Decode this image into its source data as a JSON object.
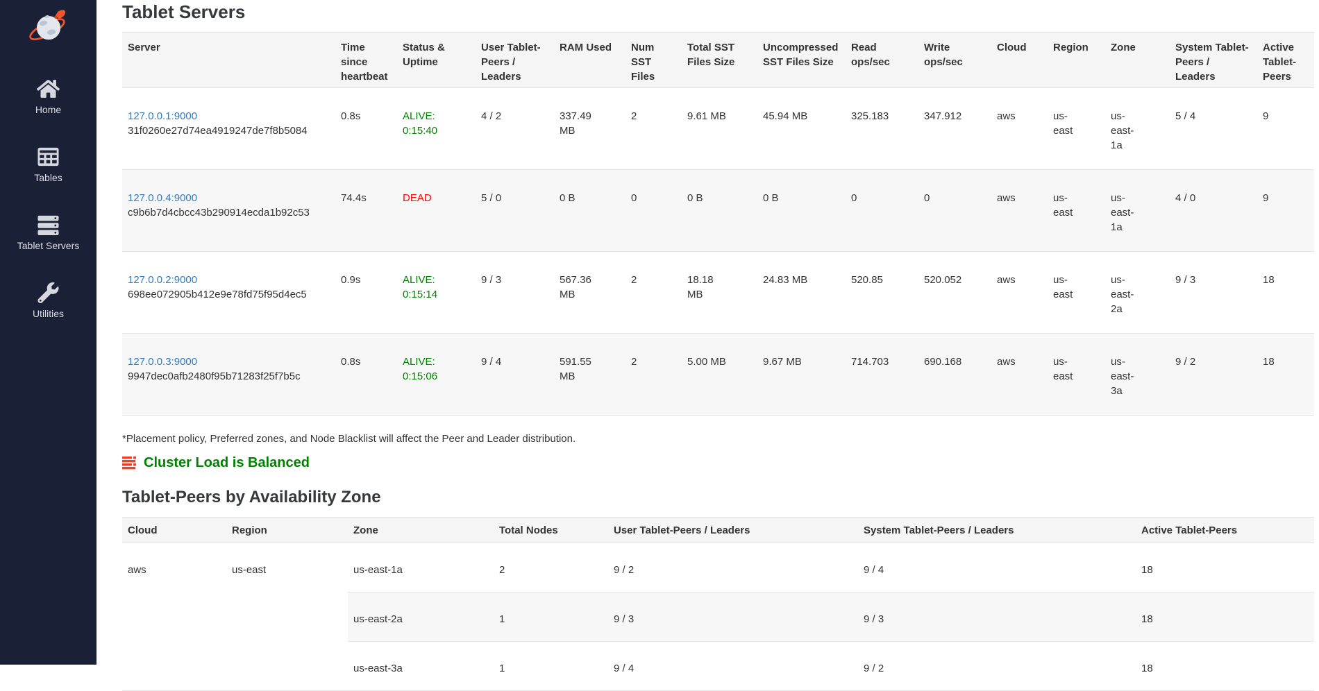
{
  "colors": {
    "sidebar_bg": "#1a2036",
    "sidebar_text": "#dcdee6",
    "link_blue": "#337ab7",
    "alive_green": "#008000",
    "dead_red": "#ff0000",
    "balanced_green": "#008000",
    "load_icon_red": "#e8432c",
    "header_bg": "#f5f5f5",
    "stripe_bg": "#f7f7f7"
  },
  "sidebar": {
    "logo_icon": "yugabyte-logo",
    "items": [
      {
        "id": "home",
        "label": "Home",
        "icon": "home-icon"
      },
      {
        "id": "tables",
        "label": "Tables",
        "icon": "tables-icon"
      },
      {
        "id": "tablet-servers",
        "label": "Tablet Servers",
        "icon": "tablet-servers-icon"
      },
      {
        "id": "utilities",
        "label": "Utilities",
        "icon": "utilities-icon"
      }
    ]
  },
  "page": {
    "title": "Tablet Servers",
    "footnote": "*Placement policy, Preferred zones, and Node Blacklist will affect the Peer and Leader distribution.",
    "cluster_status": "Cluster Load is Balanced",
    "az_title": "Tablet-Peers by Availability Zone"
  },
  "servers_table": {
    "columns": [
      "Server",
      "Time since heartbeat",
      "Status & Uptime",
      "User Tablet-Peers / Leaders",
      "RAM Used",
      "Num SST Files",
      "Total SST Files Size",
      "Uncompressed SST Files Size",
      "Read ops/sec",
      "Write ops/sec",
      "Cloud",
      "Region",
      "Zone",
      "System Tablet-Peers / Leaders",
      "Active Tablet-Peers"
    ],
    "rows": [
      {
        "server": "127.0.0.1:9000",
        "uuid": "31f0260e27d74ea4919247de7f8b5084",
        "heartbeat": "0.8s",
        "status": "ALIVE:",
        "uptime": "0:15:40",
        "alive": true,
        "user_peers": "4 / 2",
        "ram": "337.49 MB",
        "num_sst": "2",
        "total_sst": "9.61 MB",
        "uncompressed_sst": "45.94 MB",
        "read_ops": "325.183",
        "write_ops": "347.912",
        "cloud": "aws",
        "region": "us-east",
        "zone": "us-east-1a",
        "system_peers": "5 / 4",
        "active_peers": "9"
      },
      {
        "server": "127.0.0.4:9000",
        "uuid": "c9b6b7d4cbcc43b290914ecda1b92c53",
        "heartbeat": "74.4s",
        "status": "DEAD",
        "uptime": "",
        "alive": false,
        "user_peers": "5 / 0",
        "ram": "0 B",
        "num_sst": "0",
        "total_sst": "0 B",
        "uncompressed_sst": "0 B",
        "read_ops": "0",
        "write_ops": "0",
        "cloud": "aws",
        "region": "us-east",
        "zone": "us-east-1a",
        "system_peers": "4 / 0",
        "active_peers": "9"
      },
      {
        "server": "127.0.0.2:9000",
        "uuid": "698ee072905b412e9e78fd75f95d4ec5",
        "heartbeat": "0.9s",
        "status": "ALIVE:",
        "uptime": "0:15:14",
        "alive": true,
        "user_peers": "9 / 3",
        "ram": "567.36 MB",
        "num_sst": "2",
        "total_sst": "18.18 MB",
        "uncompressed_sst": "24.83 MB",
        "read_ops": "520.85",
        "write_ops": "520.052",
        "cloud": "aws",
        "region": "us-east",
        "zone": "us-east-2a",
        "system_peers": "9 / 3",
        "active_peers": "18"
      },
      {
        "server": "127.0.0.3:9000",
        "uuid": "9947dec0afb2480f95b71283f25f7b5c",
        "heartbeat": "0.8s",
        "status": "ALIVE:",
        "uptime": "0:15:06",
        "alive": true,
        "user_peers": "9 / 4",
        "ram": "591.55 MB",
        "num_sst": "2",
        "total_sst": "5.00 MB",
        "uncompressed_sst": "9.67 MB",
        "read_ops": "714.703",
        "write_ops": "690.168",
        "cloud": "aws",
        "region": "us-east",
        "zone": "us-east-3a",
        "system_peers": "9 / 2",
        "active_peers": "18"
      }
    ]
  },
  "az_table": {
    "columns": [
      "Cloud",
      "Region",
      "Zone",
      "Total Nodes",
      "User Tablet-Peers / Leaders",
      "System Tablet-Peers / Leaders",
      "Active Tablet-Peers"
    ],
    "cloud": "aws",
    "region": "us-east",
    "rows": [
      {
        "zone": "us-east-1a",
        "total_nodes": "2",
        "user_peers": "9 / 2",
        "system_peers": "9 / 4",
        "active_peers": "18"
      },
      {
        "zone": "us-east-2a",
        "total_nodes": "1",
        "user_peers": "9 / 3",
        "system_peers": "9 / 3",
        "active_peers": "18"
      },
      {
        "zone": "us-east-3a",
        "total_nodes": "1",
        "user_peers": "9 / 4",
        "system_peers": "9 / 2",
        "active_peers": "18"
      }
    ]
  }
}
